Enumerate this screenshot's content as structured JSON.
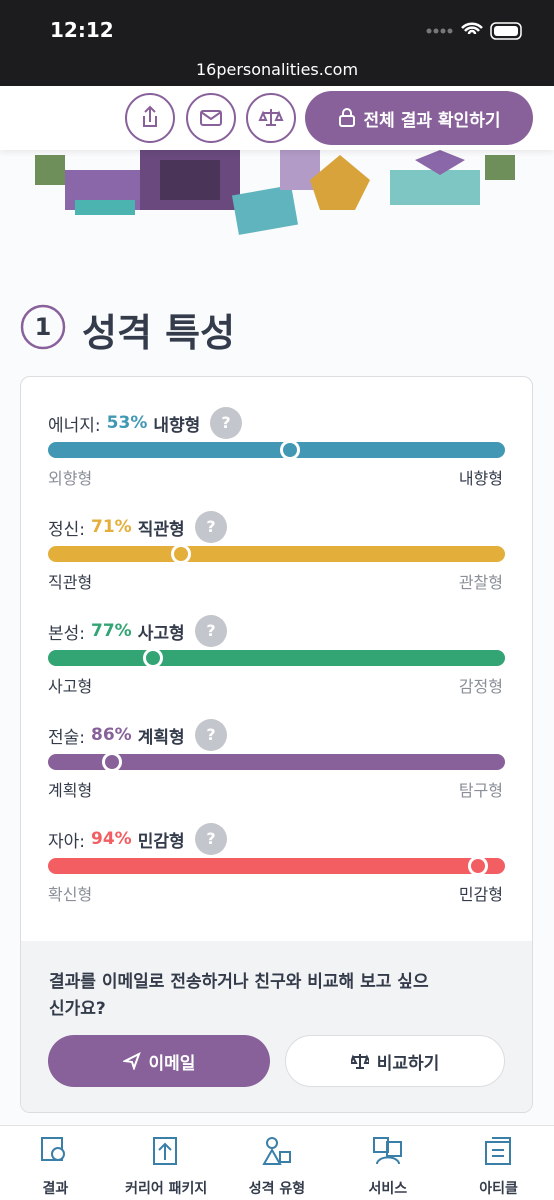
{
  "status_bar": {
    "time": "12:12",
    "url": "16personalities.com"
  },
  "header": {
    "unlock_button": "전체 결과 확인하기"
  },
  "section": {
    "number": "1",
    "title": "성격 특성"
  },
  "traits": [
    {
      "name": "에너지:",
      "percent_label": "53%",
      "type": "내향형",
      "percent": 53,
      "side": "right",
      "color": "#4298b4",
      "left_label": "외향형",
      "right_label": "내향형"
    },
    {
      "name": "정신:",
      "percent_label": "71%",
      "type": "직관형",
      "percent": 71,
      "side": "left",
      "color": "#e4ae3a",
      "left_label": "직관형",
      "right_label": "관찰형"
    },
    {
      "name": "본성:",
      "percent_label": "77%",
      "type": "사고형",
      "percent": 77,
      "side": "left",
      "color": "#33a474",
      "left_label": "사고형",
      "right_label": "감정형"
    },
    {
      "name": "전술:",
      "percent_label": "86%",
      "type": "계획형",
      "percent": 86,
      "side": "left",
      "color": "#88619a",
      "left_label": "계획형",
      "right_label": "탐구형"
    },
    {
      "name": "자아:",
      "percent_label": "94%",
      "type": "민감형",
      "percent": 94,
      "side": "right",
      "color": "#f25e62",
      "left_label": "확신형",
      "right_label": "민감형"
    }
  ],
  "share": {
    "prompt": "결과를 이메일로 전송하거나 친구와 비교해 보고 싶으신가요?",
    "email_button": "이메일",
    "compare_button": "비교하기"
  },
  "nav": [
    "결과",
    "커리어 패키지",
    "성격 유형",
    "서비스",
    "아티클"
  ]
}
